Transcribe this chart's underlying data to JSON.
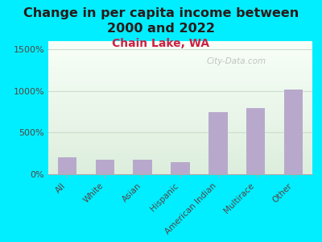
{
  "title": "Change in per capita income between\n2000 and 2022",
  "subtitle": "Chain Lake, WA",
  "categories": [
    "All",
    "White",
    "Asian",
    "Hispanic",
    "American Indian",
    "Multirace",
    "Other"
  ],
  "values": [
    200,
    170,
    175,
    150,
    750,
    800,
    1020
  ],
  "bar_color": "#b8a9cc",
  "background_color": "#00eeff",
  "plot_bg_top": "#ddeedd",
  "plot_bg_bottom": "#f8fff8",
  "title_color": "#2a1a1a",
  "subtitle_color": "#cc2244",
  "ylabel_ticks": [
    "0%",
    "500%",
    "1000%",
    "1500%"
  ],
  "ytick_values": [
    0,
    500,
    1000,
    1500
  ],
  "ylim": [
    0,
    1600
  ],
  "watermark": "City-Data.com",
  "title_fontsize": 11.5,
  "subtitle_fontsize": 10,
  "tick_color": "#554444",
  "grid_color": "#ccddcc",
  "spine_color": "#aaaaaa"
}
